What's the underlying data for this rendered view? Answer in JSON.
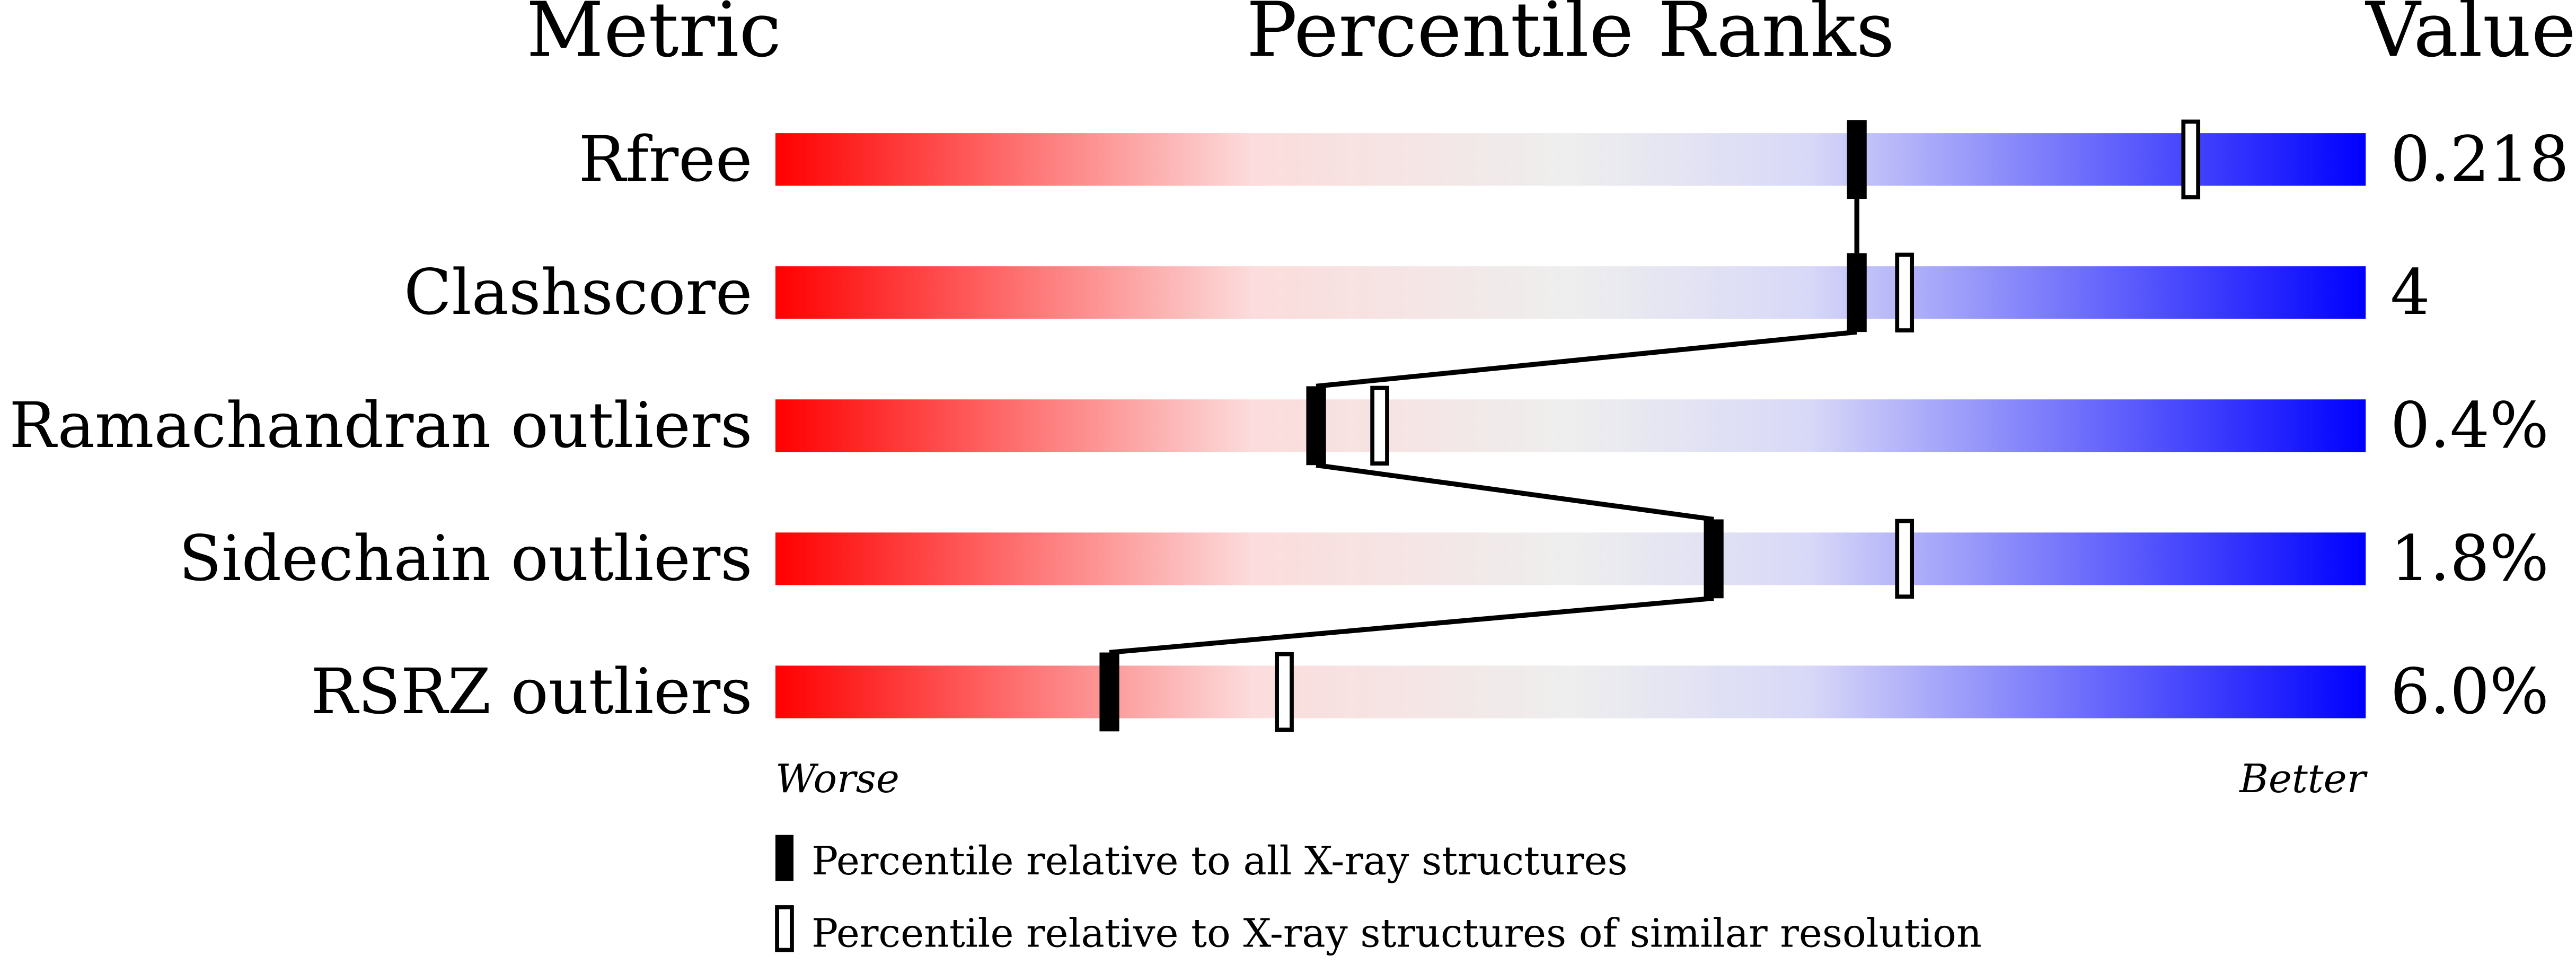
{
  "chart_data": {
    "type": "percentile-slider",
    "headers": {
      "metric": "Metric",
      "ranks": "Percentile Ranks",
      "value": "Value"
    },
    "xlim": [
      0,
      100
    ],
    "axis": {
      "left": "Worse",
      "right": "Better"
    },
    "gradient_colors": [
      "#ff0000",
      "#fcdcdc",
      "#eeeeee",
      "#d8d8f8",
      "#0000ff"
    ],
    "metrics": [
      {
        "name": "Rfree",
        "value": "0.218",
        "percentile_all": 68,
        "percentile_similar": 89
      },
      {
        "name": "Clashscore",
        "value": "4",
        "percentile_all": 68,
        "percentile_similar": 71
      },
      {
        "name": "Ramachandran outliers",
        "value": "0.4%",
        "percentile_all": 34,
        "percentile_similar": 38
      },
      {
        "name": "Sidechain outliers",
        "value": "1.8%",
        "percentile_all": 59,
        "percentile_similar": 71
      },
      {
        "name": "RSRZ outliers",
        "value": "6.0%",
        "percentile_all": 21,
        "percentile_similar": 32
      }
    ],
    "legend": {
      "all": "Percentile relative to all X-ray structures",
      "similar": "Percentile relative to X-ray structures of similar resolution"
    }
  }
}
